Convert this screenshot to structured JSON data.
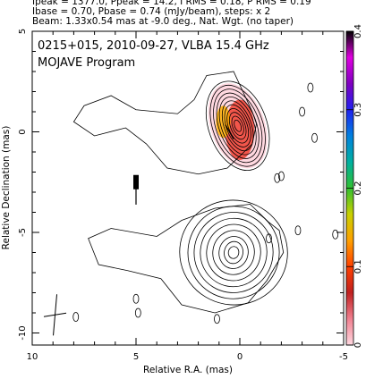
{
  "header": {
    "line1": "Ipeak = 1377.0, Ppeak = 14.2, I RMS = 0.18, P RMS = 0.19",
    "line2": "Ibase = 0.70, Pbase = 0.74 (mJy/beam), steps: x 2",
    "line3": "Beam: 1.33x0.54 mas at -9.0 deg., Nat. Wgt. (no taper)"
  },
  "plot": {
    "title_line1": "0215+015, 2010-09-27, VLBA 15.4 GHz",
    "title_line2": "MOJAVE Program"
  },
  "chart_data": {
    "type": "contour",
    "xlabel": "Relative R.A. (mas)",
    "ylabel": "Relative Declination (mas)",
    "xlim": [
      10,
      -5
    ],
    "ylim": [
      -10.6,
      5
    ],
    "x_ticks": [
      "10",
      "5",
      "0",
      "-5"
    ],
    "y_ticks": [
      "5",
      "0",
      "-5",
      "-10"
    ],
    "colorbar": {
      "range": [
        0,
        0.4
      ],
      "tick_labels": [
        "0.4",
        "0.3",
        "0.2",
        "0.1",
        "0"
      ],
      "colors": [
        "#ffd8e0",
        "#f08090",
        "#c02020",
        "#ff4000",
        "#ffa000",
        "#c8d000",
        "#30c030",
        "#00b0a0",
        "#0080e0",
        "#2020f0",
        "#8000c0",
        "#e000e0",
        "#000000"
      ]
    },
    "polarization_color_patches": [
      {
        "x": 0.0,
        "y": 0.1,
        "rx": 0.7,
        "ry": 1.5,
        "color": "#f04030"
      },
      {
        "x": 0.8,
        "y": 0.5,
        "rx": 0.35,
        "ry": 0.8,
        "color": "#ffb000"
      }
    ],
    "contours": [
      {
        "cx": 0.1,
        "cy": 0.3,
        "levels": [
          [
            1.4,
            2.3
          ],
          [
            1.2,
            2.1
          ],
          [
            1.05,
            1.9
          ],
          [
            0.9,
            1.7
          ],
          [
            0.78,
            1.5
          ],
          [
            0.65,
            1.3
          ],
          [
            0.55,
            1.1
          ],
          [
            0.45,
            0.9
          ],
          [
            0.35,
            0.7
          ],
          [
            0.25,
            0.5
          ],
          [
            0.15,
            0.3
          ]
        ],
        "angle": -20
      },
      {
        "cx": 0.3,
        "cy": -6.0,
        "levels": [
          [
            2.6,
            2.6
          ],
          [
            2.2,
            2.3
          ],
          [
            1.9,
            2.0
          ],
          [
            1.6,
            1.7
          ],
          [
            1.3,
            1.4
          ],
          [
            1.0,
            1.1
          ],
          [
            0.7,
            0.8
          ],
          [
            0.45,
            0.55
          ],
          [
            0.25,
            0.3
          ]
        ],
        "angle": 10
      }
    ],
    "outer_contours": [
      [
        [
          -0.6,
          1.0
        ],
        [
          0.3,
          3.0
        ],
        [
          1.6,
          2.8
        ],
        [
          2.2,
          1.6
        ],
        [
          3.0,
          0.9
        ],
        [
          5.0,
          1.1
        ],
        [
          6.2,
          1.8
        ],
        [
          7.5,
          1.3
        ],
        [
          8.0,
          0.5
        ],
        [
          7.0,
          -0.2
        ],
        [
          5.5,
          0.2
        ],
        [
          4.5,
          -0.6
        ],
        [
          3.5,
          -1.8
        ],
        [
          2.0,
          -2.1
        ],
        [
          0.6,
          -1.8
        ],
        [
          -0.6,
          -0.6
        ],
        [
          -0.8,
          0.4
        ]
      ],
      [
        [
          -1.4,
          -4.5
        ],
        [
          -0.5,
          -3.6
        ],
        [
          1.2,
          -3.8
        ],
        [
          2.8,
          -4.4
        ],
        [
          4.0,
          -5.2
        ],
        [
          6.2,
          -4.8
        ],
        [
          7.3,
          -5.3
        ],
        [
          6.8,
          -6.6
        ],
        [
          5.4,
          -6.9
        ],
        [
          3.8,
          -7.3
        ],
        [
          2.8,
          -8.6
        ],
        [
          1.2,
          -9.0
        ],
        [
          -0.4,
          -8.5
        ],
        [
          -1.3,
          -7.4
        ],
        [
          -2.1,
          -6.0
        ],
        [
          -1.9,
          -4.9
        ]
      ]
    ],
    "noise_contours": [
      [
        -3.0,
        1.0
      ],
      [
        -3.6,
        -0.3
      ],
      [
        -1.8,
        -2.3
      ],
      [
        -4.6,
        -5.1
      ],
      [
        -2.8,
        -4.9
      ],
      [
        -1.4,
        -5.3
      ],
      [
        -2.0,
        -2.2
      ],
      [
        4.9,
        -9.0
      ],
      [
        1.1,
        -9.3
      ],
      [
        -3.4,
        2.2
      ],
      [
        7.9,
        -9.2
      ],
      [
        5.0,
        -8.3
      ]
    ],
    "beam": {
      "x": 8.9,
      "y": -9.1,
      "major": 1.33,
      "minor": 0.54,
      "pa": -9.0
    },
    "polarization_vectors": [
      {
        "x": 0.5,
        "y": 0.0,
        "len": 0.4,
        "angle": 30
      },
      {
        "x": 5.0,
        "y": -3.0,
        "len": 0.6,
        "angle": 0
      }
    ]
  }
}
